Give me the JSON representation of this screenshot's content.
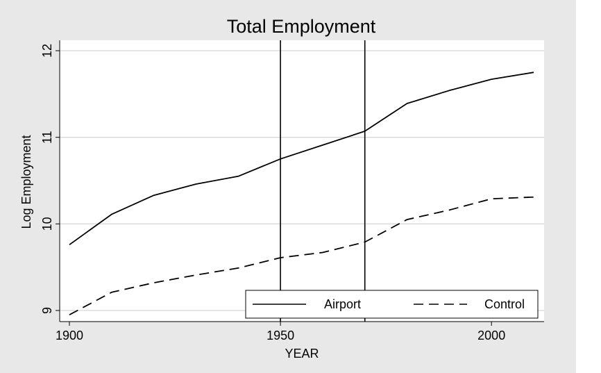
{
  "chart_data": {
    "type": "line",
    "title": "Total Employment",
    "xlabel": "YEAR",
    "ylabel": "Log Employment",
    "x": [
      1900,
      1910,
      1920,
      1930,
      1940,
      1950,
      1960,
      1970,
      1980,
      1990,
      2000,
      2010
    ],
    "series": [
      {
        "name": "Airport",
        "style": "solid",
        "values": [
          9.76,
          10.11,
          10.33,
          10.46,
          10.55,
          10.75,
          10.91,
          11.07,
          11.39,
          11.54,
          11.67,
          11.75
        ]
      },
      {
        "name": "Control",
        "style": "dashed",
        "values": [
          8.95,
          9.21,
          9.32,
          9.41,
          9.49,
          9.61,
          9.67,
          9.79,
          10.05,
          10.16,
          10.29,
          10.31
        ]
      }
    ],
    "xlim": [
      1900,
      2010
    ],
    "ylim": [
      8.95,
      12.1
    ],
    "xticks": [
      "1900",
      "1950",
      "2000"
    ],
    "yticks": [
      "9",
      "10",
      "11",
      "12"
    ],
    "vlines": [
      1950,
      1970
    ],
    "grid": true,
    "legend_position": "bottom-right",
    "colors": {
      "page_background": "#e8e8e8",
      "plot_background": "#ffffff",
      "grid": "#d8d8d8",
      "line": "#000000"
    }
  }
}
